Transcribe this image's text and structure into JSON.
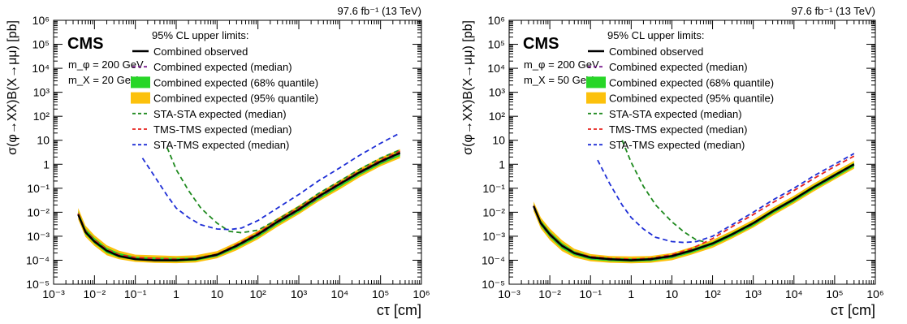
{
  "chart_data": [
    {
      "type": "line",
      "lumi_label": "97.6 fb⁻¹ (13 TeV)",
      "experiment": "CMS",
      "mass_labels": [
        "m_φ = 200 GeV",
        "m_X = 20 GeV"
      ],
      "xlabel": "cτ [cm]",
      "ylabel": "σ(φ→XX)B(X→μμ) [pb]",
      "xscale": "log",
      "yscale": "log",
      "xlim": [
        0.001,
        1000000
      ],
      "ylim": [
        1e-05,
        1000000
      ],
      "xticks": [
        "10⁻³",
        "10⁻²",
        "10⁻¹",
        "1",
        "10",
        "10²",
        "10³",
        "10⁴",
        "10⁵",
        "10⁶"
      ],
      "yticks": [
        "10⁻⁵",
        "10⁻⁴",
        "10⁻³",
        "10⁻²",
        "10⁻¹",
        "1",
        "10",
        "10²",
        "10³",
        "10⁴",
        "10⁵",
        "10⁶"
      ],
      "legend_title": "95% CL upper limits:",
      "legend_placement": "top-center",
      "series": [
        {
          "name": "Combined observed",
          "style": "solid",
          "color": "#000000",
          "x": [
            0.004,
            0.006,
            0.01,
            0.02,
            0.04,
            0.1,
            0.3,
            1,
            3,
            10,
            30,
            100,
            300,
            1000,
            3000,
            10000,
            30000,
            100000,
            300000
          ],
          "y": [
            0.008,
            0.0015,
            0.0006,
            0.00025,
            0.00015,
            0.00011,
            0.0001,
            0.0001,
            0.00011,
            0.00017,
            0.0004,
            0.0012,
            0.004,
            0.013,
            0.045,
            0.15,
            0.45,
            1.3,
            3
          ]
        },
        {
          "name": "Combined expected (median)",
          "style": "dashed",
          "color": "#7b1f8f",
          "x": [
            0.004,
            0.006,
            0.01,
            0.02,
            0.04,
            0.1,
            0.3,
            1,
            3,
            10,
            30,
            100,
            300,
            1000,
            3000,
            10000,
            30000,
            100000,
            300000
          ],
          "y": [
            0.0085,
            0.0016,
            0.00065,
            0.00026,
            0.00016,
            0.00012,
            0.00011,
            0.000105,
            0.00011,
            0.00016,
            0.00038,
            0.0011,
            0.0037,
            0.012,
            0.04,
            0.14,
            0.42,
            1.2,
            2.8
          ]
        },
        {
          "name": "STA-STA expected (median)",
          "style": "dashed",
          "color": "#1f8a1f",
          "x": [
            0.6,
            1,
            2,
            4,
            10,
            20,
            40,
            100,
            300,
            1000,
            3000,
            10000,
            30000,
            100000,
            300000
          ],
          "y": [
            5,
            0.6,
            0.08,
            0.015,
            0.0035,
            0.0016,
            0.0014,
            0.0018,
            0.005,
            0.017,
            0.06,
            0.2,
            0.6,
            1.8,
            4
          ]
        },
        {
          "name": "TMS-TMS expected (median)",
          "style": "dashed",
          "color": "#e8231f",
          "x": [
            0.004,
            0.006,
            0.01,
            0.02,
            0.04,
            0.1,
            0.3,
            1,
            3,
            10,
            30,
            100,
            300,
            1000,
            3000,
            10000,
            30000,
            100000,
            300000
          ],
          "y": [
            0.009,
            0.0017,
            0.0007,
            0.00028,
            0.00017,
            0.00013,
            0.00012,
            0.00011,
            0.00012,
            0.00018,
            0.00045,
            0.0014,
            0.0045,
            0.015,
            0.05,
            0.17,
            0.5,
            1.5,
            3.5
          ]
        },
        {
          "name": "STA-TMS expected (median)",
          "style": "dashed",
          "color": "#1f2fd6",
          "x": [
            0.15,
            0.3,
            0.6,
            1,
            2,
            4,
            10,
            20,
            40,
            100,
            300,
            1000,
            3000,
            10000,
            30000,
            100000,
            300000
          ],
          "y": [
            1.8,
            0.3,
            0.05,
            0.015,
            0.006,
            0.003,
            0.002,
            0.0019,
            0.0022,
            0.0045,
            0.015,
            0.055,
            0.2,
            0.7,
            2.3,
            7.5,
            20
          ]
        }
      ],
      "bands": [
        {
          "name": "Combined expected (68% quantile)",
          "color": "#27d627",
          "x": [
            0.004,
            0.006,
            0.01,
            0.02,
            0.04,
            0.1,
            0.3,
            1,
            3,
            10,
            30,
            100,
            300,
            1000,
            3000,
            10000,
            30000,
            100000,
            300000
          ],
          "low": [
            0.0065,
            0.0012,
            0.0005,
            0.0002,
            0.00013,
            0.0001,
            9e-05,
            8.8e-05,
            9.5e-05,
            0.00014,
            0.00031,
            0.0009,
            0.003,
            0.0098,
            0.033,
            0.11,
            0.34,
            0.98,
            2.2
          ],
          "high": [
            0.011,
            0.0021,
            0.00085,
            0.00033,
            0.0002,
            0.00014,
            0.00013,
            0.000125,
            0.00013,
            0.00019,
            0.00046,
            0.0014,
            0.0046,
            0.015,
            0.05,
            0.17,
            0.52,
            1.5,
            3.5
          ]
        },
        {
          "name": "Combined expected (95% quantile)",
          "color": "#fcc10c",
          "x": [
            0.004,
            0.006,
            0.01,
            0.02,
            0.04,
            0.1,
            0.3,
            1,
            3,
            10,
            30,
            100,
            300,
            1000,
            3000,
            10000,
            30000,
            100000,
            300000
          ],
          "low": [
            0.005,
            0.00095,
            0.0004,
            0.00016,
            0.00011,
            8.5e-05,
            7.7e-05,
            7.5e-05,
            8e-05,
            0.00012,
            0.00026,
            0.00075,
            0.0025,
            0.0082,
            0.028,
            0.09,
            0.28,
            0.82,
            1.8
          ],
          "high": [
            0.015,
            0.0028,
            0.0011,
            0.00042,
            0.00025,
            0.00017,
            0.00016,
            0.00015,
            0.00016,
            0.00024,
            0.00056,
            0.0017,
            0.0057,
            0.019,
            0.062,
            0.21,
            0.65,
            1.9,
            4.3
          ]
        }
      ]
    },
    {
      "type": "line",
      "lumi_label": "97.6 fb⁻¹ (13 TeV)",
      "experiment": "CMS",
      "mass_labels": [
        "m_φ = 200 GeV",
        "m_X = 50 GeV"
      ],
      "xlabel": "cτ [cm]",
      "ylabel": "σ(φ→XX)B(X→μμ) [pb]",
      "xscale": "log",
      "yscale": "log",
      "xlim": [
        0.001,
        1000000
      ],
      "ylim": [
        1e-05,
        1000000
      ],
      "xticks": [
        "10⁻³",
        "10⁻²",
        "10⁻¹",
        "1",
        "10",
        "10²",
        "10³",
        "10⁴",
        "10⁵",
        "10⁶"
      ],
      "yticks": [
        "10⁻⁵",
        "10⁻⁴",
        "10⁻³",
        "10⁻²",
        "10⁻¹",
        "1",
        "10",
        "10²",
        "10³",
        "10⁴",
        "10⁵",
        "10⁶"
      ],
      "legend_title": "95% CL upper limits:",
      "legend_placement": "top-center",
      "series": [
        {
          "name": "Combined observed",
          "style": "solid",
          "color": "#000000",
          "x": [
            0.004,
            0.006,
            0.01,
            0.02,
            0.04,
            0.1,
            0.3,
            1,
            3,
            10,
            30,
            100,
            300,
            1000,
            3000,
            10000,
            30000,
            100000,
            300000
          ],
          "y": [
            0.018,
            0.0035,
            0.0012,
            0.0004,
            0.0002,
            0.00013,
            0.00011,
            0.0001,
            0.00011,
            0.00015,
            0.00025,
            0.0005,
            0.0012,
            0.0035,
            0.011,
            0.035,
            0.11,
            0.35,
            1
          ]
        },
        {
          "name": "Combined expected (median)",
          "style": "dashed",
          "color": "#7b1f8f",
          "x": [
            0.004,
            0.006,
            0.01,
            0.02,
            0.04,
            0.1,
            0.3,
            1,
            3,
            10,
            30,
            100,
            300,
            1000,
            3000,
            10000,
            30000,
            100000,
            300000
          ],
          "y": [
            0.017,
            0.0033,
            0.0011,
            0.00038,
            0.00019,
            0.000125,
            0.000105,
            0.0001,
            0.000105,
            0.00014,
            0.00024,
            0.00048,
            0.00115,
            0.0033,
            0.0105,
            0.033,
            0.105,
            0.33,
            0.95
          ]
        },
        {
          "name": "STA-STA expected (median)",
          "style": "dashed",
          "color": "#1f8a1f",
          "x": [
            0.6,
            1,
            2,
            4,
            10,
            20,
            40,
            60
          ],
          "y": [
            10,
            1.2,
            0.12,
            0.02,
            0.004,
            0.0015,
            0.0007,
            0.0006
          ]
        },
        {
          "name": "TMS-TMS expected (median)",
          "style": "dashed",
          "color": "#e8231f",
          "x": [
            0.004,
            0.006,
            0.01,
            0.02,
            0.04,
            0.1,
            0.3,
            1,
            3,
            10,
            30,
            100,
            300,
            1000,
            3000,
            10000,
            30000,
            100000,
            300000
          ],
          "y": [
            0.019,
            0.0037,
            0.0013,
            0.00042,
            0.00021,
            0.00014,
            0.00012,
            0.00011,
            0.00012,
            0.00017,
            0.0003,
            0.0008,
            0.0025,
            0.008,
            0.025,
            0.08,
            0.25,
            0.8,
            2.2
          ]
        },
        {
          "name": "STA-TMS expected (median)",
          "style": "dashed",
          "color": "#1f2fd6",
          "x": [
            0.15,
            0.3,
            0.6,
            1,
            2,
            4,
            10,
            20,
            40,
            100,
            300,
            1000,
            3000,
            10000,
            30000,
            100000,
            300000
          ],
          "y": [
            1.5,
            0.15,
            0.02,
            0.006,
            0.002,
            0.0009,
            0.0006,
            0.00055,
            0.0006,
            0.001,
            0.003,
            0.01,
            0.032,
            0.1,
            0.32,
            1,
            2.8
          ]
        }
      ],
      "bands": [
        {
          "name": "Combined expected (68% quantile)",
          "color": "#27d627",
          "x": [
            0.004,
            0.006,
            0.01,
            0.02,
            0.04,
            0.1,
            0.3,
            1,
            3,
            10,
            30,
            100,
            300,
            1000,
            3000,
            10000,
            30000,
            100000,
            300000
          ],
          "low": [
            0.014,
            0.0027,
            0.0009,
            0.0003,
            0.00016,
            0.000105,
            9e-05,
            8.6e-05,
            9e-05,
            0.00012,
            0.0002,
            0.0004,
            0.00095,
            0.0027,
            0.0086,
            0.027,
            0.086,
            0.27,
            0.78
          ],
          "high": [
            0.022,
            0.0046,
            0.0016,
            0.00052,
            0.00024,
            0.00015,
            0.000125,
            0.00012,
            0.000125,
            0.000165,
            0.00029,
            0.00058,
            0.0014,
            0.004,
            0.0128,
            0.04,
            0.128,
            0.4,
            1.15
          ]
        },
        {
          "name": "Combined expected (95% quantile)",
          "color": "#fcc10c",
          "x": [
            0.004,
            0.006,
            0.01,
            0.02,
            0.04,
            0.1,
            0.3,
            1,
            3,
            10,
            30,
            100,
            300,
            1000,
            3000,
            10000,
            30000,
            100000,
            300000
          ],
          "low": [
            0.011,
            0.0021,
            0.0007,
            0.00024,
            0.00013,
            9e-05,
            7.8e-05,
            7.4e-05,
            7.8e-05,
            0.0001,
            0.00017,
            0.00033,
            0.0008,
            0.0023,
            0.0072,
            0.023,
            0.072,
            0.23,
            0.65
          ],
          "high": [
            0.028,
            0.006,
            0.0021,
            0.00068,
            0.0003,
            0.00018,
            0.00015,
            0.000145,
            0.00015,
            0.0002,
            0.00035,
            0.0007,
            0.0017,
            0.0049,
            0.0155,
            0.049,
            0.155,
            0.49,
            1.4
          ]
        }
      ]
    }
  ]
}
